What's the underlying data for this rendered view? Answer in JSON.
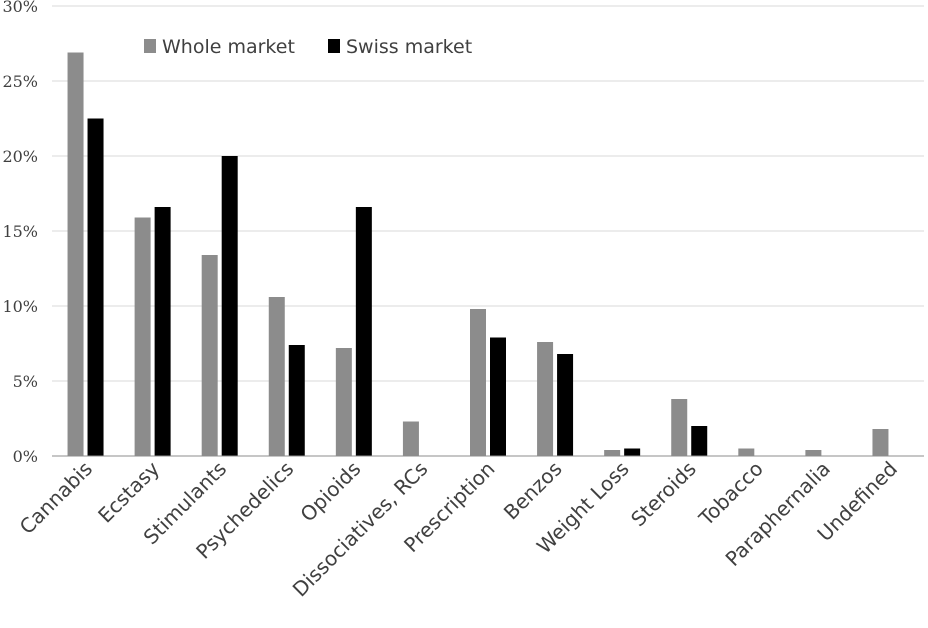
{
  "chart_data": {
    "type": "bar",
    "title": "",
    "xlabel": "",
    "ylabel": "",
    "ylim": [
      0,
      30
    ],
    "yticks": [
      "0%",
      "5%",
      "10%",
      "15%",
      "20%",
      "25%",
      "30%"
    ],
    "grid": true,
    "legend_position": "top-left",
    "categories": [
      "Cannabis",
      "Ecstasy",
      "Stimulants",
      "Psychedelics",
      "Opioids",
      "Dissociatives, RCs",
      "Prescription",
      "Benzos",
      "Weight Loss",
      "Steroids",
      "Tobacco",
      "Paraphernalia",
      "Undefined"
    ],
    "series": [
      {
        "name": "Whole market",
        "color": "#8c8c8c",
        "values": [
          26.9,
          15.9,
          13.4,
          10.6,
          7.2,
          2.3,
          9.8,
          7.6,
          0.4,
          3.8,
          0.5,
          0.4,
          1.8
        ]
      },
      {
        "name": "Swiss market",
        "color": "#000000",
        "values": [
          22.5,
          16.6,
          20.0,
          7.4,
          16.6,
          0.0,
          7.9,
          6.8,
          0.5,
          2.0,
          0.0,
          0.0,
          0.0
        ]
      }
    ]
  }
}
